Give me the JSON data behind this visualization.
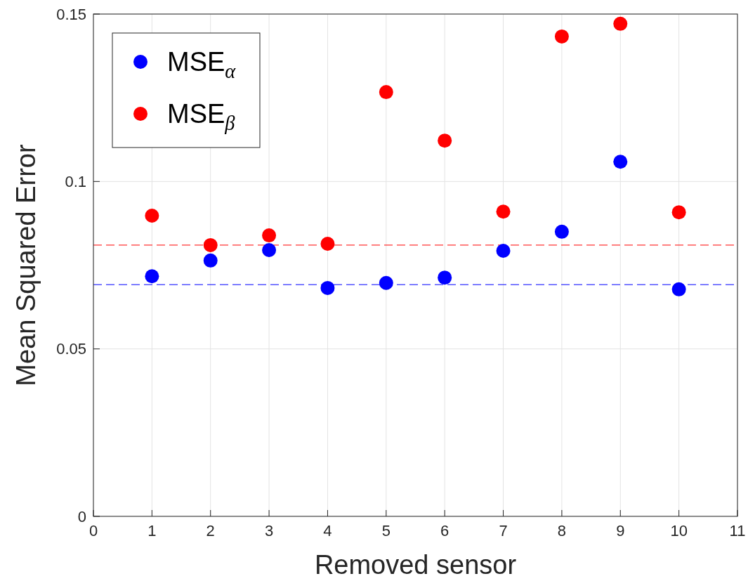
{
  "chart_data": {
    "type": "scatter",
    "xlabel": "Removed sensor",
    "ylabel": "Mean Squared Error",
    "x": [
      1,
      2,
      3,
      4,
      5,
      6,
      7,
      8,
      9,
      10
    ],
    "series": [
      {
        "name": "MSE$_{α}$",
        "color": "#0000ff",
        "values": [
          0.0717,
          0.0764,
          0.0795,
          0.0682,
          0.0697,
          0.0713,
          0.0793,
          0.085,
          0.1059,
          0.0678
        ]
      },
      {
        "name": "MSE$_{β}$",
        "color": "#ff0000",
        "values": [
          0.0898,
          0.081,
          0.0839,
          0.0814,
          0.1267,
          0.1122,
          0.091,
          0.1433,
          0.1471,
          0.0908
        ]
      }
    ],
    "ref_lines": [
      {
        "axis": "y",
        "value": 0.081,
        "color": "#ff0000",
        "line_style": "dashed"
      },
      {
        "axis": "y",
        "value": 0.0692,
        "color": "#0000ff",
        "line_style": "dashed"
      }
    ],
    "xlim": [
      0,
      11
    ],
    "xticks": [
      0,
      1,
      2,
      3,
      4,
      5,
      6,
      7,
      8,
      9,
      10,
      11
    ],
    "ylim": [
      0,
      0.15
    ],
    "yticks": [
      0,
      0.05,
      0.1,
      0.15
    ],
    "grid": true,
    "legend": "top left",
    "marker": "circle"
  }
}
